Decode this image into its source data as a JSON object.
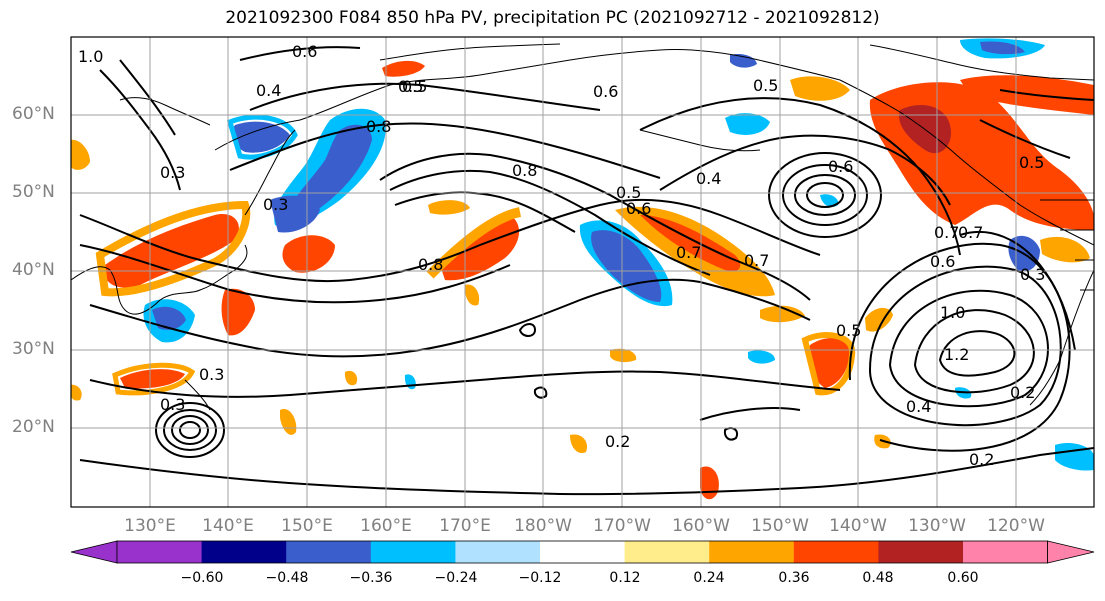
{
  "title": "2021092300 F084 850 hPa PV, precipitation PC (2021092712 - 2021092812)",
  "lat_labels": [
    "60°N",
    "50°N",
    "40°N",
    "30°N",
    "20°N"
  ],
  "lon_labels": [
    "130°E",
    "140°E",
    "150°E",
    "160°E",
    "170°E",
    "180°W",
    "170°W",
    "160°W",
    "150°W",
    "140°W",
    "130°W",
    "120°W"
  ],
  "colorbar": {
    "ticks": [
      "−0.60",
      "−0.48",
      "−0.36",
      "−0.24",
      "−0.12",
      "0.12",
      "0.24",
      "0.36",
      "0.48",
      "0.60"
    ],
    "colors": [
      "#9932cc",
      "#00008b",
      "#3a5fcd",
      "#00bfff",
      "#b0e2ff",
      "#ffffff",
      "#ffec8b",
      "#ffa500",
      "#ff4500",
      "#b22222",
      "#ff82ab"
    ]
  },
  "contour_labels": [
    "0.6",
    "0.5",
    "0.4",
    "0.8",
    "0.6",
    "0.5",
    "1.0",
    "0.3",
    "0.8",
    "0.7",
    "0.6",
    "0.4",
    "0.6",
    "0.5",
    "0.7",
    "0.3",
    "0.5",
    "0.6",
    "0.7",
    "0.8",
    "1.0",
    "1.2",
    "0.2",
    "0.3",
    "0.3",
    "0.5",
    "0.4",
    "0.2",
    "0.2",
    "0.5",
    "0.7",
    "0.3"
  ]
}
